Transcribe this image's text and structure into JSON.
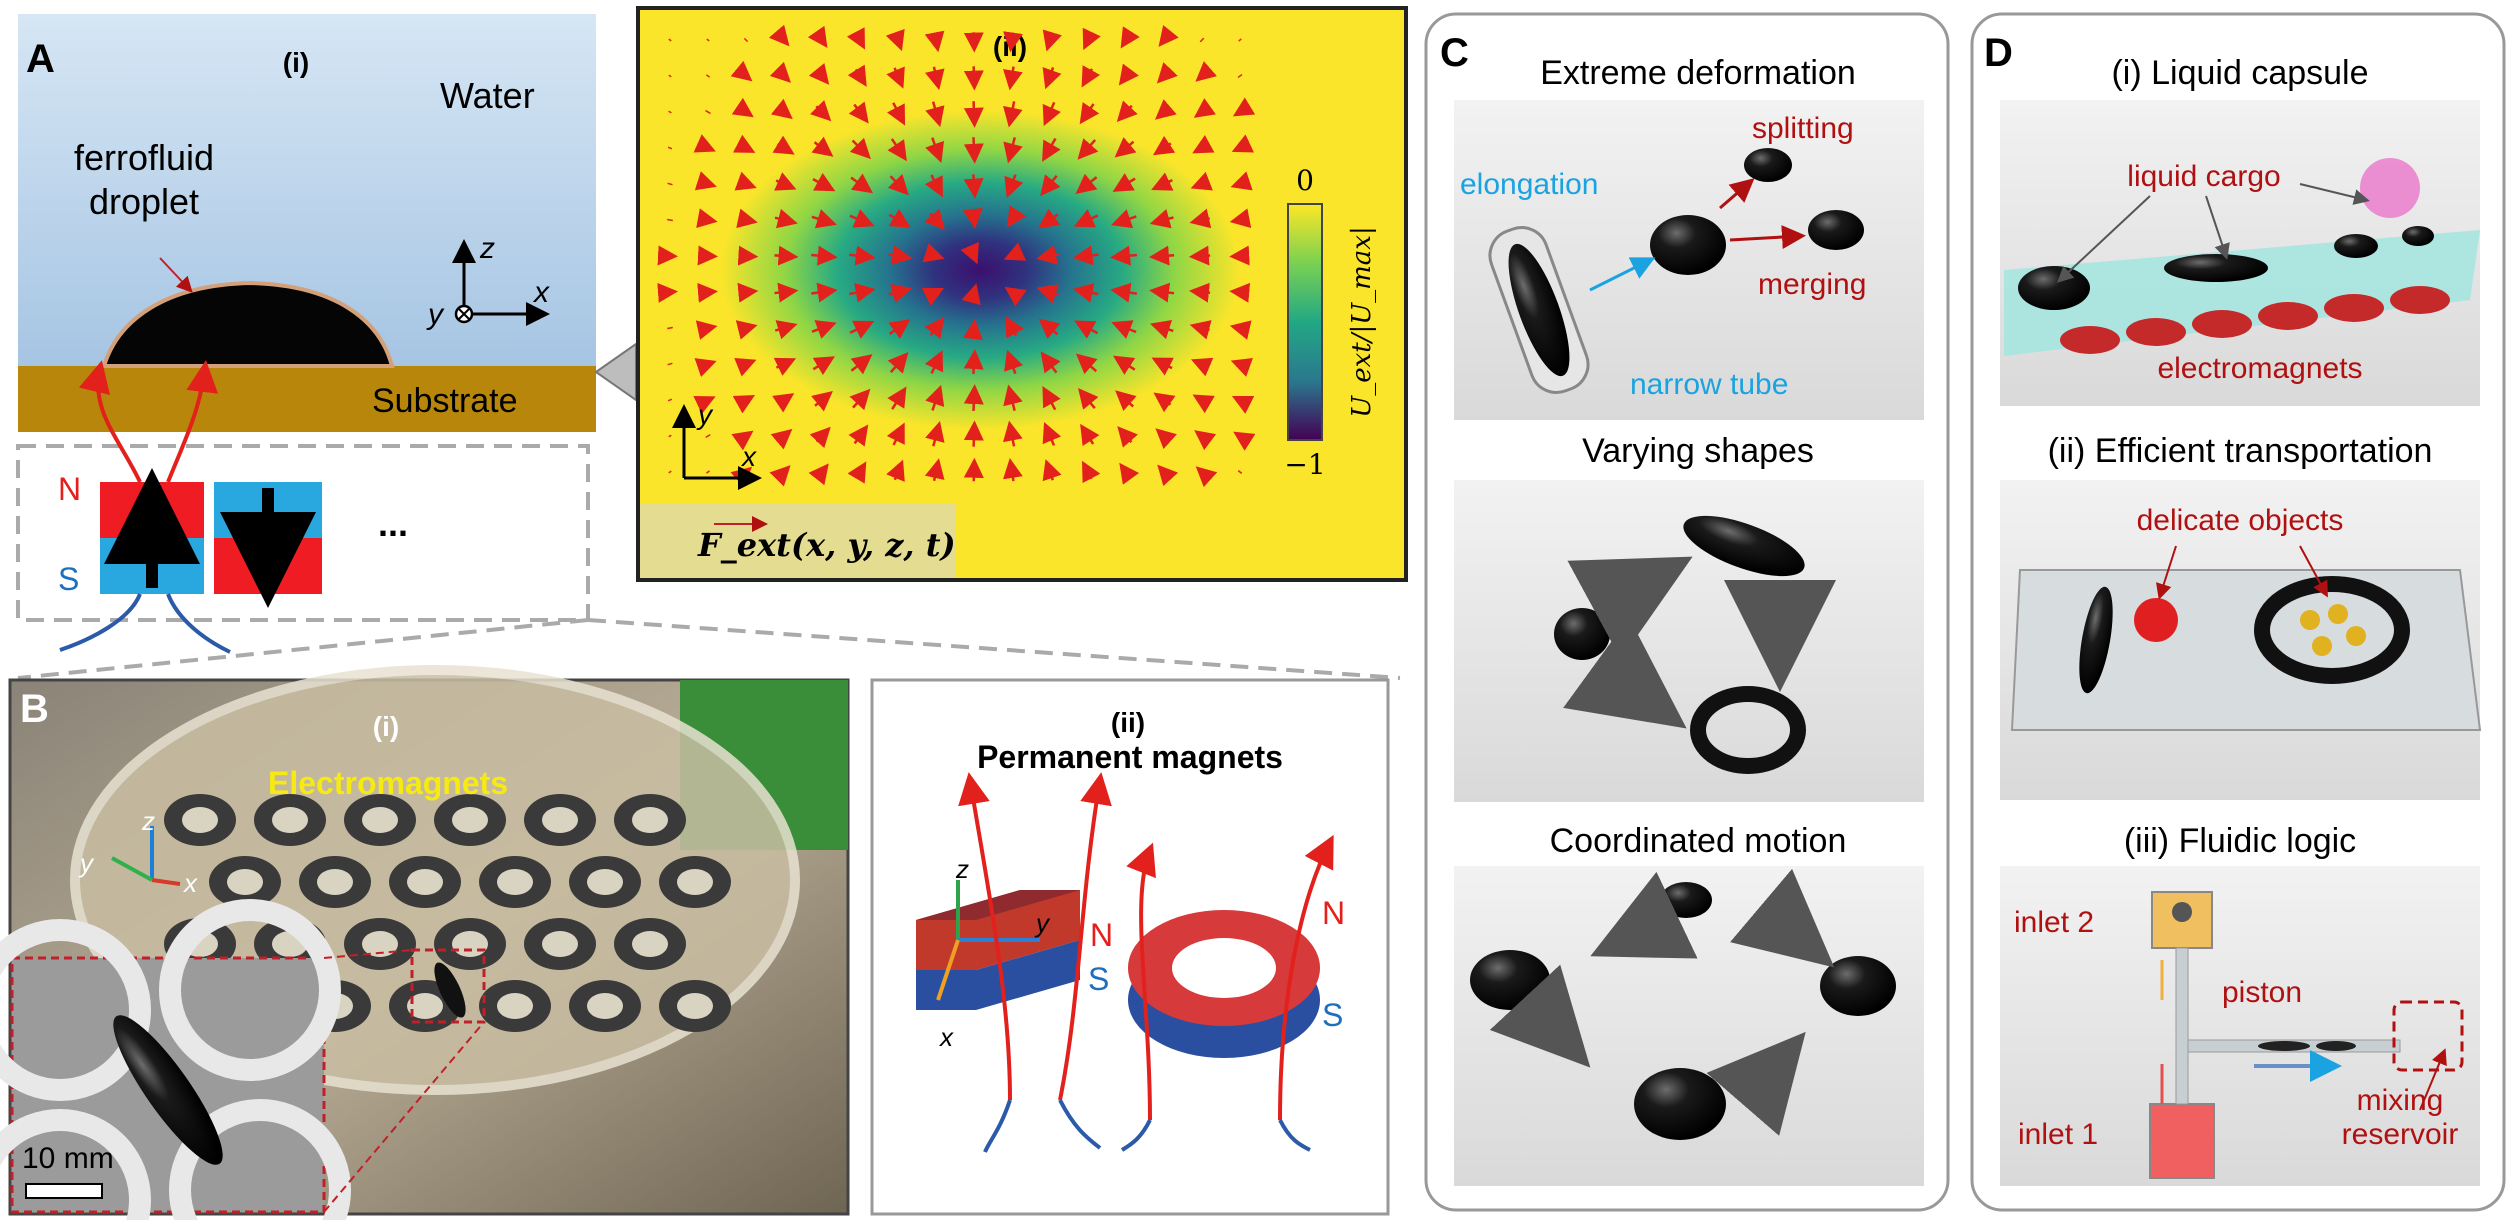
{
  "panelA": {
    "letter": "A",
    "sub_i": "(i)",
    "water_label": "Water",
    "droplet_label_1": "ferrofluid",
    "droplet_label_2": "droplet",
    "substrate_label": "Substrate",
    "axis_z": "z",
    "axis_y": "y",
    "axis_x": "x",
    "north": "N",
    "south": "S",
    "ellipsis": "...",
    "sub_ii": "(ii)",
    "colorbar_top": "0",
    "colorbar_bottom": "−1",
    "colorbar_label": "U_ext/|U_max|",
    "field_axis_y": "y",
    "field_axis_x": "x",
    "force_label": "F_ext(x, y, z, t)",
    "colors": {
      "water_top": "#cfe1f1",
      "water_bottom": "#a9c7e4",
      "substrate": "#b8860b",
      "north": "#ef1c24",
      "south": "#29a8e0",
      "field_bg": "#fbe52a",
      "arrow": "#e3211c"
    }
  },
  "panelB": {
    "letter": "B",
    "sub_i": "(i)",
    "electromagnets_label": "Electromagnets",
    "axis_z": "z",
    "axis_y": "y",
    "axis_x": "x",
    "scale_bar": "10 mm",
    "sub_ii": "(ii)",
    "permanent_label": "Permanent magnets",
    "north_1": "N",
    "south_1": "S",
    "north_2": "N",
    "south_2": "S",
    "pm_axis_z": "z",
    "pm_axis_y": "y",
    "pm_axis_x": "x"
  },
  "panelC": {
    "letter": "C",
    "title_1": "Extreme deformation",
    "splitting": "splitting",
    "elongation": "elongation",
    "merging": "merging",
    "narrow_tube": "narrow tube",
    "title_2": "Varying shapes",
    "title_3": "Coordinated motion"
  },
  "panelD": {
    "letter": "D",
    "title_1": "(i) Liquid capsule",
    "liquid_cargo": "liquid cargo",
    "electromagnets": "electromagnets",
    "title_2": "(ii) Efficient transportation",
    "delicate_objects": "delicate objects",
    "title_3": "(iii) Fluidic logic",
    "inlet_2": "inlet 2",
    "piston": "piston",
    "inlet_1": "inlet 1",
    "mixing": "mixing",
    "reservoir": "reservoir"
  }
}
